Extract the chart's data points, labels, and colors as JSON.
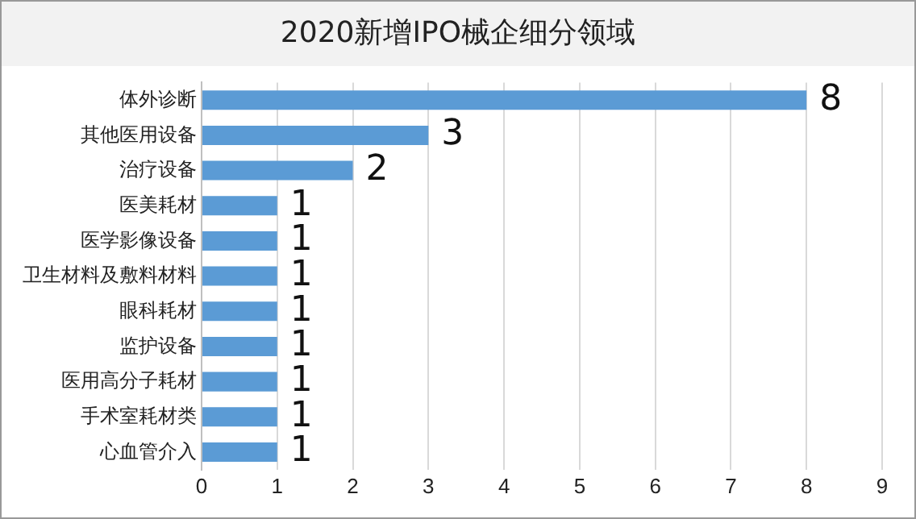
{
  "chart_data": {
    "type": "bar",
    "orientation": "horizontal",
    "title": "2020新增IPO械企细分领域",
    "categories": [
      "体外诊断",
      "其他医用设备",
      "治疗设备",
      "医美耗材",
      "医学影像设备",
      "卫生材料及敷料材料",
      "眼科耗材",
      "监护设备",
      "医用高分子耗材",
      "手术室耗材类",
      "心血管介入"
    ],
    "values": [
      8,
      3,
      2,
      1,
      1,
      1,
      1,
      1,
      1,
      1,
      1
    ],
    "color": "#5b9bd5",
    "xlim": [
      0,
      9
    ],
    "xticks": [
      0,
      1,
      2,
      3,
      4,
      5,
      6,
      7,
      8,
      9
    ],
    "grid": "x",
    "data_labels": true,
    "legend": false
  }
}
